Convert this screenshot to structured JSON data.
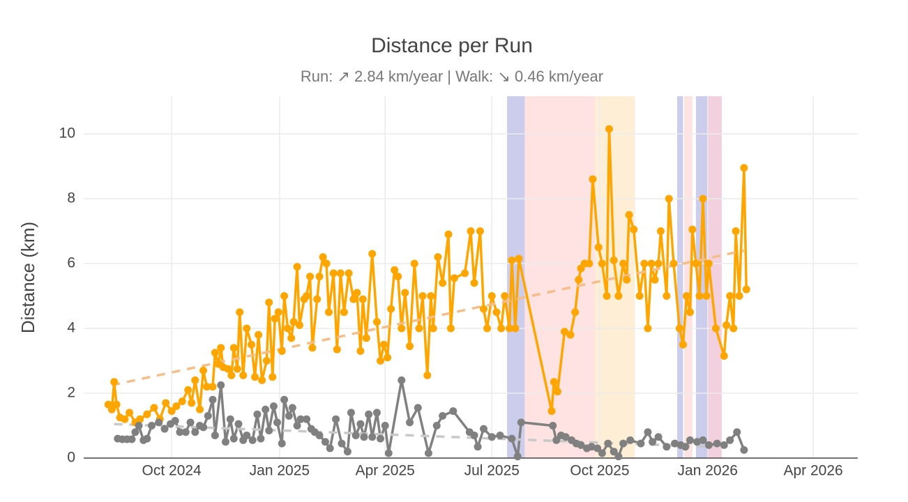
{
  "chart_data": {
    "type": "line",
    "title": "Distance per Run",
    "subtitle": "Run: ↗ 2.84 km/year | Walk: ↘ 0.46 km/year",
    "y_label": "Distance (km)",
    "xlim": [
      "2024-07-18",
      "2026-05-09"
    ],
    "xticks": [
      {
        "value": "2024-10-01",
        "label": "Oct 2024"
      },
      {
        "value": "2025-01-01",
        "label": "Jan 2025"
      },
      {
        "value": "2025-04-01",
        "label": "Apr 2025"
      },
      {
        "value": "2025-07-01",
        "label": "Jul 2025"
      },
      {
        "value": "2025-10-01",
        "label": "Oct 2025"
      },
      {
        "value": "2026-01-01",
        "label": "Jan 2026"
      },
      {
        "value": "2026-04-01",
        "label": "Apr 2026"
      }
    ],
    "ylim": [
      0,
      11.16
    ],
    "yticks": [
      0,
      2,
      4,
      6,
      8,
      10
    ],
    "grid": true,
    "bands": [
      {
        "x0": "2025-07-14",
        "x1": "2025-07-29",
        "color": "rgba(110,110,200,0.35)"
      },
      {
        "x0": "2025-07-29",
        "x1": "2025-09-27",
        "color": "rgba(255,160,160,0.3)"
      },
      {
        "x0": "2025-09-27",
        "x1": "2025-10-31",
        "color": "rgba(255,200,120,0.3)"
      },
      {
        "x0": "2025-12-06",
        "x1": "2025-12-11",
        "color": "rgba(110,110,200,0.35)"
      },
      {
        "x0": "2025-12-12",
        "x1": "2025-12-19",
        "color": "rgba(255,160,160,0.3)"
      },
      {
        "x0": "2025-12-22",
        "x1": "2026-01-01",
        "color": "rgba(110,110,200,0.35)"
      },
      {
        "x0": "2026-01-01",
        "x1": "2026-01-13",
        "color": "rgba(220,120,160,0.35)"
      }
    ],
    "series": [
      {
        "color": "#FFA500",
        "markers": true,
        "dash": false,
        "x": [
          "2024-08-08",
          "2024-08-11",
          "2024-08-13",
          "2024-08-15",
          "2024-08-18",
          "2024-08-22",
          "2024-08-26",
          "2024-08-31",
          "2024-09-04",
          "2024-09-10",
          "2024-09-16",
          "2024-09-21",
          "2024-09-26",
          "2024-10-01",
          "2024-10-05",
          "2024-10-10",
          "2024-10-15",
          "2024-10-18",
          "2024-10-21",
          "2024-10-25",
          "2024-10-28",
          "2024-10-31",
          "2024-11-05",
          "2024-11-07",
          "2024-11-10",
          "2024-11-12",
          "2024-11-14",
          "2024-11-18",
          "2024-11-21",
          "2024-11-23",
          "2024-11-26",
          "2024-11-28",
          "2024-12-01",
          "2024-12-04",
          "2024-12-08",
          "2024-12-11",
          "2024-12-14",
          "2024-12-17",
          "2024-12-21",
          "2024-12-23",
          "2024-12-26",
          "2024-12-28",
          "2024-12-31",
          "2025-01-03",
          "2025-01-05",
          "2025-01-08",
          "2025-01-11",
          "2025-01-13",
          "2025-01-16",
          "2025-01-18",
          "2025-01-22",
          "2025-01-24",
          "2025-01-27",
          "2025-01-29",
          "2025-02-02",
          "2025-02-04",
          "2025-02-07",
          "2025-02-10",
          "2025-02-12",
          "2025-02-16",
          "2025-02-19",
          "2025-02-22",
          "2025-02-25",
          "2025-03-01",
          "2025-03-05",
          "2025-03-08",
          "2025-03-11",
          "2025-03-13",
          "2025-03-16",
          "2025-03-21",
          "2025-03-25",
          "2025-03-28",
          "2025-03-31",
          "2025-04-03",
          "2025-04-06",
          "2025-04-09",
          "2025-04-12",
          "2025-04-15",
          "2025-04-18",
          "2025-04-22",
          "2025-04-26",
          "2025-04-30",
          "2025-05-03",
          "2025-05-07",
          "2025-05-10",
          "2025-05-12",
          "2025-05-16",
          "2025-05-20",
          "2025-05-25",
          "2025-05-27",
          "2025-05-30",
          "2025-06-08",
          "2025-06-13",
          "2025-06-16",
          "2025-06-21",
          "2025-06-24",
          "2025-06-27",
          "2025-07-01",
          "2025-07-05",
          "2025-07-09",
          "2025-07-12",
          "2025-07-16",
          "2025-07-18",
          "2025-07-21",
          "2025-07-24",
          "2025-08-21",
          "2025-08-23",
          "2025-08-26",
          "2025-09-01",
          "2025-09-06",
          "2025-09-10",
          "2025-09-13",
          "2025-09-15",
          "2025-09-18",
          "2025-09-22",
          "2025-09-25",
          "2025-09-30",
          "2025-10-03",
          "2025-10-07",
          "2025-10-09",
          "2025-10-13",
          "2025-10-17",
          "2025-10-21",
          "2025-10-24",
          "2025-10-26",
          "2025-10-30",
          "2025-11-04",
          "2025-11-08",
          "2025-11-11",
          "2025-11-14",
          "2025-11-17",
          "2025-11-20",
          "2025-11-22",
          "2025-11-27",
          "2025-11-29",
          "2025-12-03",
          "2025-12-08",
          "2025-12-11",
          "2025-12-14",
          "2025-12-17",
          "2025-12-19",
          "2025-12-22",
          "2025-12-25",
          "2025-12-28",
          "2025-12-31",
          "2026-01-02",
          "2026-01-08",
          "2026-01-15",
          "2026-01-17",
          "2026-01-20",
          "2026-01-23",
          "2026-01-25",
          "2026-01-28",
          "2026-02-01",
          "2026-02-03"
        ],
        "values": [
          1.65,
          1.5,
          2.35,
          1.65,
          1.25,
          1.2,
          1.4,
          1.1,
          1.2,
          1.35,
          1.55,
          1.2,
          1.7,
          1.45,
          1.6,
          1.75,
          2.1,
          1.7,
          2.4,
          1.5,
          2.7,
          2.2,
          2.2,
          3.25,
          2.9,
          3.4,
          2.8,
          2.75,
          2.55,
          3.4,
          2.75,
          4.5,
          2.55,
          4.0,
          3.5,
          2.5,
          3.8,
          2.4,
          3.0,
          4.8,
          2.5,
          4.3,
          4.5,
          3.3,
          5.0,
          4.0,
          3.7,
          4.2,
          5.9,
          4.1,
          4.9,
          5.0,
          5.6,
          3.4,
          4.9,
          5.6,
          6.2,
          6.0,
          4.5,
          5.7,
          3.35,
          5.7,
          4.5,
          5.7,
          4.9,
          5.1,
          3.3,
          4.9,
          3.7,
          6.3,
          4.2,
          3.0,
          3.5,
          3.1,
          4.6,
          5.8,
          5.6,
          4.0,
          5.1,
          3.45,
          6.0,
          4.0,
          5.0,
          2.55,
          5.0,
          4.0,
          6.2,
          5.4,
          6.9,
          4.0,
          5.55,
          5.7,
          7.0,
          5.4,
          7.0,
          4.6,
          4.0,
          5.0,
          4.5,
          4.0,
          5.0,
          4.0,
          6.1,
          4.0,
          6.15,
          1.45,
          2.35,
          2.05,
          3.9,
          3.8,
          4.5,
          5.5,
          5.85,
          6.0,
          6.0,
          8.6,
          6.5,
          6.0,
          5.0,
          10.15,
          6.1,
          5.0,
          6.0,
          5.5,
          7.5,
          7.05,
          5.0,
          6.0,
          4.0,
          6.0,
          5.5,
          6.0,
          7.0,
          5.0,
          8.0,
          6.0,
          4.0,
          3.5,
          5.0,
          4.5,
          7.05,
          6.0,
          5.0,
          8.0,
          5.0,
          6.0,
          4.0,
          3.15,
          4.1,
          5.0,
          4.0,
          7.0,
          5.0,
          8.95,
          5.2
        ]
      },
      {
        "color": "#808080",
        "markers": true,
        "dash": false,
        "x": [
          "2024-08-16",
          "2024-08-20",
          "2024-08-24",
          "2024-08-28",
          "2024-08-31",
          "2024-09-03",
          "2024-09-07",
          "2024-09-10",
          "2024-09-14",
          "2024-09-20",
          "2024-09-25",
          "2024-09-30",
          "2024-10-04",
          "2024-10-08",
          "2024-10-13",
          "2024-10-17",
          "2024-10-21",
          "2024-10-25",
          "2024-10-28",
          "2024-11-01",
          "2024-11-05",
          "2024-11-07",
          "2024-11-12",
          "2024-11-16",
          "2024-11-20",
          "2024-11-23",
          "2024-11-27",
          "2024-12-01",
          "2024-12-04",
          "2024-12-09",
          "2024-12-13",
          "2024-12-16",
          "2024-12-20",
          "2024-12-23",
          "2024-12-27",
          "2024-12-30",
          "2025-01-03",
          "2025-01-05",
          "2025-01-09",
          "2025-01-12",
          "2025-01-16",
          "2025-01-19",
          "2025-01-24",
          "2025-01-28",
          "2025-01-31",
          "2025-02-04",
          "2025-02-09",
          "2025-02-13",
          "2025-02-18",
          "2025-02-23",
          "2025-02-28",
          "2025-03-03",
          "2025-03-07",
          "2025-03-11",
          "2025-03-14",
          "2025-03-18",
          "2025-03-21",
          "2025-03-25",
          "2025-03-28",
          "2025-04-01",
          "2025-04-04",
          "2025-04-15",
          "2025-04-22",
          "2025-04-29",
          "2025-05-08",
          "2025-05-15",
          "2025-05-20",
          "2025-05-29",
          "2025-06-12",
          "2025-06-16",
          "2025-06-19",
          "2025-06-24",
          "2025-07-01",
          "2025-07-08",
          "2025-07-18",
          "2025-07-23",
          "2025-07-26",
          "2025-08-22",
          "2025-08-25",
          "2025-08-29",
          "2025-09-02",
          "2025-09-07",
          "2025-09-11",
          "2025-09-15",
          "2025-09-20",
          "2025-09-24",
          "2025-09-29",
          "2025-10-03",
          "2025-10-08",
          "2025-10-13",
          "2025-10-17",
          "2025-10-21",
          "2025-10-27",
          "2025-11-05",
          "2025-11-11",
          "2025-11-15",
          "2025-11-20",
          "2025-11-27",
          "2025-12-04",
          "2025-12-09",
          "2025-12-13",
          "2025-12-17",
          "2025-12-23",
          "2025-12-28",
          "2026-01-02",
          "2026-01-09",
          "2026-01-15",
          "2026-01-20",
          "2026-01-26",
          "2026-02-01"
        ],
        "values": [
          0.6,
          0.58,
          0.58,
          0.58,
          0.8,
          1.0,
          0.55,
          0.6,
          1.0,
          1.1,
          0.9,
          1.05,
          1.15,
          0.8,
          0.8,
          1.1,
          0.8,
          1.0,
          0.95,
          1.3,
          1.8,
          0.7,
          2.25,
          0.5,
          1.2,
          0.6,
          1.05,
          0.55,
          0.7,
          0.55,
          1.35,
          0.6,
          1.5,
          0.85,
          1.6,
          1.1,
          0.45,
          1.8,
          1.3,
          1.55,
          1.0,
          1.2,
          1.2,
          0.9,
          0.8,
          0.7,
          0.5,
          0.3,
          1.2,
          0.45,
          0.2,
          1.4,
          0.7,
          1.05,
          0.65,
          1.35,
          0.65,
          1.4,
          0.6,
          1.0,
          0.15,
          2.4,
          1.1,
          1.55,
          0.15,
          1.0,
          1.3,
          1.45,
          0.8,
          0.7,
          0.35,
          0.9,
          0.65,
          0.7,
          0.6,
          0.05,
          1.1,
          1.0,
          0.55,
          0.7,
          0.65,
          0.55,
          0.45,
          0.4,
          0.3,
          0.35,
          0.3,
          0.15,
          0.45,
          0.2,
          0.05,
          0.45,
          0.55,
          0.45,
          0.8,
          0.5,
          0.65,
          0.35,
          0.45,
          0.4,
          0.35,
          0.55,
          0.5,
          0.55,
          0.4,
          0.45,
          0.4,
          0.55,
          0.8,
          0.25
        ]
      },
      {
        "color": "#f5be88",
        "markers": false,
        "dash": true,
        "x": [
          "2024-08-11",
          "2026-02-01"
        ],
        "values": [
          2.25,
          6.4
        ]
      },
      {
        "color": "#c8c8c8",
        "markers": false,
        "dash": true,
        "x": [
          "2024-08-13",
          "2025-12-31"
        ],
        "values": [
          1.05,
          0.35
        ]
      }
    ]
  }
}
